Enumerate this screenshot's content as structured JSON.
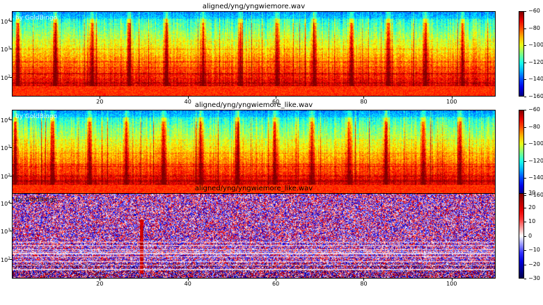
{
  "chart_data": [
    {
      "type": "heatmap",
      "title": "aligned/yng/yngwiemore.wav",
      "watermark": "by GoldBingo",
      "colormap": "jet",
      "y_scale": "log",
      "x_ticks": [
        20,
        40,
        60,
        80,
        100
      ],
      "y_ticks": [
        {
          "value": 100,
          "base": "10",
          "exp": "2"
        },
        {
          "value": 1000,
          "base": "10",
          "exp": "3"
        },
        {
          "value": 10000,
          "base": "10",
          "exp": "4"
        }
      ],
      "xlim": [
        0,
        110
      ],
      "ylim": [
        20,
        22050
      ],
      "colorbar": {
        "range": [
          -160,
          -60
        ],
        "ticks": [
          "−60",
          "−80",
          "−100",
          "−120",
          "−140",
          "−160"
        ]
      },
      "grid": false
    },
    {
      "type": "heatmap",
      "title": "aligned/yng/yngwiemore_like.wav",
      "watermark": "by GoldBingo",
      "colormap": "jet",
      "y_scale": "log",
      "x_ticks": [
        20,
        40,
        60,
        80,
        100
      ],
      "y_ticks": [
        {
          "value": 100,
          "base": "10",
          "exp": "2"
        },
        {
          "value": 1000,
          "base": "10",
          "exp": "3"
        },
        {
          "value": 10000,
          "base": "10",
          "exp": "4"
        }
      ],
      "xlim": [
        0,
        110
      ],
      "ylim": [
        20,
        22050
      ],
      "colorbar": {
        "range": [
          -160,
          -60
        ],
        "ticks": [
          "−60",
          "−80",
          "−100",
          "−120",
          "−140",
          "−160"
        ]
      },
      "grid": false
    },
    {
      "type": "heatmap",
      "title": "aligned/yng/yngwiemore_like.wav",
      "watermark": "by GoldBingo",
      "colormap": "seismic",
      "y_scale": "log",
      "x_ticks": [
        20,
        40,
        60,
        80,
        100
      ],
      "y_ticks": [
        {
          "value": 100,
          "base": "10",
          "exp": "2"
        },
        {
          "value": 1000,
          "base": "10",
          "exp": "3"
        },
        {
          "value": 10000,
          "base": "10",
          "exp": "4"
        }
      ],
      "xlim": [
        0,
        110
      ],
      "ylim": [
        20,
        22050
      ],
      "colorbar": {
        "range": [
          -30,
          30
        ],
        "ticks": [
          "30",
          "20",
          "10",
          "0",
          "−10",
          "−20",
          "−30"
        ]
      },
      "grid": false
    }
  ]
}
